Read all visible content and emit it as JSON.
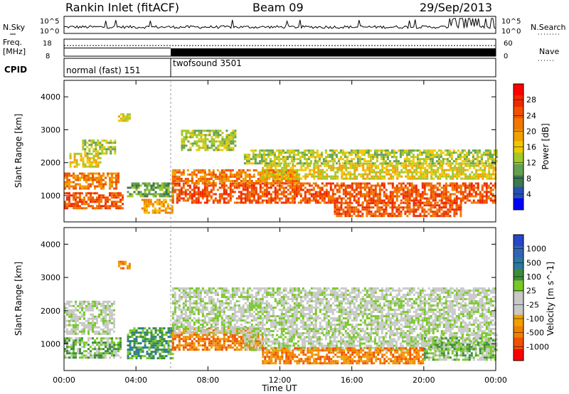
{
  "header": {
    "site": "Rankin Inlet (fitACF)",
    "beam": "Beam 09",
    "date": "29/Sep/2013"
  },
  "strip_labels": {
    "nsky": "N.Sky",
    "nsky_ticks": [
      "10^5",
      "10^0"
    ],
    "nsearch": "N.Search",
    "nsearch_ticks": [
      "10^5",
      "10^0"
    ],
    "freq_line1": "Freq.",
    "freq_line2": "[MHz]",
    "freq_ticks": [
      "18",
      "8"
    ],
    "nave": "Nave",
    "nave_ticks": [
      "60",
      "0"
    ],
    "cpid": "CPID",
    "cpid_segments": [
      "normal (fast) 151",
      "twofsound 3501"
    ]
  },
  "colors": {
    "power_scale": [
      "#0000ff",
      "#2850b4",
      "#3c7850",
      "#64a050",
      "#a0c828",
      "#f0c800",
      "#f0a000",
      "#f07800",
      "#f05000",
      "#f02800",
      "#ff0000"
    ],
    "velocity_scale": [
      "#ff0000",
      "#f05000",
      "#f08000",
      "#f0a000",
      "#c8c8c8",
      "#c8c8c8",
      "#78c828",
      "#3c8c3c",
      "#2878a0",
      "#3264b4",
      "#2846c8"
    ],
    "ground_scatter": "#bebebe"
  },
  "chart_data": [
    {
      "type": "line",
      "panel": "noise-and-search-noise",
      "y_scale": "log",
      "ylim": [
        1,
        100000
      ],
      "x_range": [
        "00:00",
        "24:00"
      ],
      "series": [
        {
          "name": "N.Sky",
          "description_values_level": [
            30,
            30,
            30,
            40,
            30,
            35,
            40,
            35,
            40,
            45,
            50,
            60
          ]
        },
        {
          "name": "N.Search",
          "values_level": [
            30,
            30,
            35,
            40,
            35,
            35,
            40,
            40,
            45,
            50,
            60,
            70
          ]
        }
      ]
    },
    {
      "type": "line",
      "panel": "frequency-and-nave",
      "freq_ylim": [
        8,
        18
      ],
      "nave_ylim": [
        0,
        60
      ],
      "series": [
        {
          "name": "Freq.",
          "values": [
            [
              0,
              10
            ],
            [
              6,
              10
            ],
            [
              6,
              10
            ],
            [
              24,
              10
            ]
          ]
        },
        {
          "name": "Nave",
          "values": [
            [
              0,
              45
            ],
            [
              6,
              45
            ],
            [
              6,
              38
            ],
            [
              24,
              38
            ]
          ]
        }
      ]
    },
    {
      "type": "heatmap",
      "panel": "power",
      "xlabel": "",
      "ylabel": "Slant Range [km]",
      "colorbar_label": "Power [dB]",
      "colorbar_ticks": [
        "28",
        "24",
        "20",
        "16",
        "12",
        "8",
        "4"
      ],
      "colorbar_range": [
        0,
        32
      ],
      "ylim": [
        200,
        4500
      ],
      "y_ticks": [
        "1000",
        "2000",
        "3000",
        "4000"
      ],
      "x_ticks": [
        "00:00",
        "04:00",
        "08:00",
        "12:00",
        "16:00",
        "20:00",
        "00:00"
      ],
      "bands": [
        {
          "t0": 0.0,
          "t1": 3.3,
          "r0": 600,
          "r1": 1100,
          "level": 26
        },
        {
          "t0": 0.0,
          "t1": 3.0,
          "r0": 1200,
          "r1": 1700,
          "level": 22
        },
        {
          "t0": 0.3,
          "t1": 2.0,
          "r0": 1900,
          "r1": 2300,
          "level": 16
        },
        {
          "t0": 1.0,
          "t1": 2.8,
          "r0": 2300,
          "r1": 2700,
          "level": 13
        },
        {
          "t0": 3.0,
          "t1": 3.6,
          "r0": 3300,
          "r1": 3500,
          "level": 16
        },
        {
          "t0": 3.5,
          "t1": 6.0,
          "r0": 1000,
          "r1": 1400,
          "level": 10
        },
        {
          "t0": 4.3,
          "t1": 6.0,
          "r0": 500,
          "r1": 900,
          "level": 20
        },
        {
          "t0": 6.0,
          "t1": 24.0,
          "r0": 800,
          "r1": 1400,
          "level": 26
        },
        {
          "t0": 6.0,
          "t1": 13.0,
          "r0": 1400,
          "r1": 1800,
          "level": 22
        },
        {
          "t0": 11.0,
          "t1": 24.0,
          "r0": 1500,
          "r1": 2000,
          "level": 17
        },
        {
          "t0": 10.0,
          "t1": 24.0,
          "r0": 2000,
          "r1": 2400,
          "level": 12
        },
        {
          "t0": 15.0,
          "t1": 22.0,
          "r0": 400,
          "r1": 800,
          "level": 24
        },
        {
          "t0": 6.5,
          "t1": 9.5,
          "r0": 2400,
          "r1": 3000,
          "level": 14
        }
      ]
    },
    {
      "type": "heatmap",
      "panel": "velocity",
      "xlabel": "Time UT",
      "ylabel": "Slant Range [km]",
      "colorbar_label": "Velocity [m s^-1]",
      "colorbar_ticks": [
        "1000",
        "500",
        "100",
        "25",
        "-25",
        "-100",
        "-500",
        "-1000"
      ],
      "ylim": [
        200,
        4500
      ],
      "y_ticks": [
        "1000",
        "2000",
        "3000",
        "4000"
      ],
      "x_ticks": [
        "00:00",
        "04:00",
        "08:00",
        "12:00",
        "16:00",
        "20:00",
        "00:00"
      ],
      "bands": [
        {
          "t0": 0.0,
          "t1": 3.2,
          "r0": 600,
          "r1": 1200,
          "level": 6
        },
        {
          "t0": 0.0,
          "t1": 2.8,
          "r0": 1300,
          "r1": 2300,
          "level": 5
        },
        {
          "t0": 3.0,
          "t1": 3.7,
          "r0": 3300,
          "r1": 3500,
          "level": 2
        },
        {
          "t0": 3.5,
          "t1": 6.0,
          "r0": 600,
          "r1": 1500,
          "level": 7
        },
        {
          "t0": 6.0,
          "t1": 11.0,
          "r0": 800,
          "r1": 1500,
          "level": 2
        },
        {
          "t0": 6.0,
          "t1": 24.0,
          "r0": 1300,
          "r1": 2700,
          "level": 5
        },
        {
          "t0": 10.0,
          "t1": 24.0,
          "r0": 800,
          "r1": 1300,
          "level": 5
        },
        {
          "t0": 11.0,
          "t1": 20.0,
          "r0": 400,
          "r1": 900,
          "level": 2
        },
        {
          "t0": 20.0,
          "t1": 24.0,
          "r0": 500,
          "r1": 1200,
          "level": 6
        }
      ]
    }
  ]
}
